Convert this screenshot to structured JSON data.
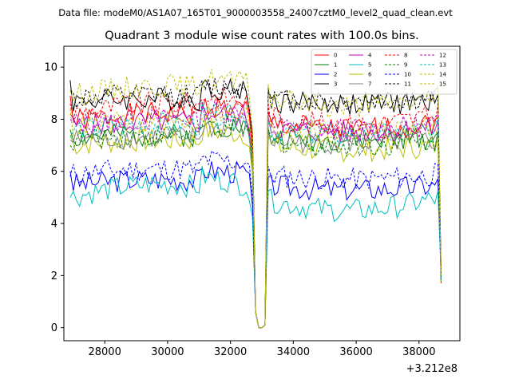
{
  "chart_data": {
    "type": "line",
    "suptitle": "Data file: modeM0/AS1A07_165T01_9000003558_24007cztM0_level2_quad_clean.evt",
    "title": "Quadrant 3 module wise count rates with 100.0s bins.",
    "xlabel": "",
    "ylabel": "",
    "x_offset_label": "+3.212e8",
    "xlim": [
      26700,
      39300
    ],
    "ylim": [
      -0.5,
      10.8
    ],
    "xticks": [
      28000,
      30000,
      32000,
      34000,
      36000,
      38000
    ],
    "yticks": [
      0,
      2,
      4,
      6,
      8,
      10
    ],
    "x_start": 26900,
    "x_step": 100,
    "gap": [
      32800,
      33100
    ],
    "dip": [
      32900,
      33000
    ],
    "end_x": 38700,
    "legend_placement": "top-right",
    "grid": false,
    "series": [
      {
        "name": "0",
        "color": "#ff0000",
        "dash": "solid",
        "level": 7.9,
        "drift": 0.3,
        "start": 8.9,
        "seed": 1
      },
      {
        "name": "1",
        "color": "#008000",
        "dash": "solid",
        "level": 7.3,
        "drift": 0.1,
        "start": 7.6,
        "seed": 2
      },
      {
        "name": "2",
        "color": "#0000ff",
        "dash": "solid",
        "level": 5.5,
        "drift": 0.2,
        "start": 6.0,
        "seed": 3
      },
      {
        "name": "3",
        "color": "#000000",
        "dash": "solid",
        "level": 8.7,
        "drift": 0.1,
        "start": 9.5,
        "seed": 4
      },
      {
        "name": "4",
        "color": "#bf00bf",
        "dash": "solid",
        "level": 7.7,
        "drift": 0.2,
        "start": 8.2,
        "seed": 5
      },
      {
        "name": "5",
        "color": "#00bfbf",
        "dash": "solid",
        "level": 5.0,
        "drift": 0.5,
        "start": 5.0,
        "seed": 6
      },
      {
        "name": "6",
        "color": "#bfbf00",
        "dash": "solid",
        "level": 7.0,
        "drift": 0.2,
        "start": 7.4,
        "seed": 7
      },
      {
        "name": "7",
        "color": "#808080",
        "dash": "solid",
        "level": 7.2,
        "drift": 0.1,
        "start": 7.2,
        "seed": 8
      },
      {
        "name": "8",
        "color": "#ff0000",
        "dash": "dashed",
        "level": 8.2,
        "drift": 0.4,
        "start": 8.6,
        "seed": 9
      },
      {
        "name": "9",
        "color": "#008000",
        "dash": "dashed",
        "level": 7.2,
        "drift": 0.2,
        "start": 7.0,
        "seed": 10
      },
      {
        "name": "10",
        "color": "#0000ff",
        "dash": "dashed",
        "level": 5.9,
        "drift": 0.2,
        "start": 5.8,
        "seed": 11
      },
      {
        "name": "11",
        "color": "#000000",
        "dash": "dashed",
        "level": 8.8,
        "drift": 0.1,
        "start": 9.1,
        "seed": 12
      },
      {
        "name": "12",
        "color": "#bf00bf",
        "dash": "dashed",
        "level": 7.8,
        "drift": 0.2,
        "start": 8.0,
        "seed": 13
      },
      {
        "name": "13",
        "color": "#00bfbf",
        "dash": "dashed",
        "level": 7.6,
        "drift": 0.2,
        "start": 7.3,
        "seed": 14
      },
      {
        "name": "14",
        "color": "#bfbf00",
        "dash": "dashed",
        "level": 8.9,
        "drift": 0.4,
        "start": 9.1,
        "seed": 15
      },
      {
        "name": "15",
        "color": "#bfbf00",
        "dash": "dashed",
        "level": 7.7,
        "drift": 0.2,
        "start": 8.4,
        "seed": 16
      }
    ]
  }
}
